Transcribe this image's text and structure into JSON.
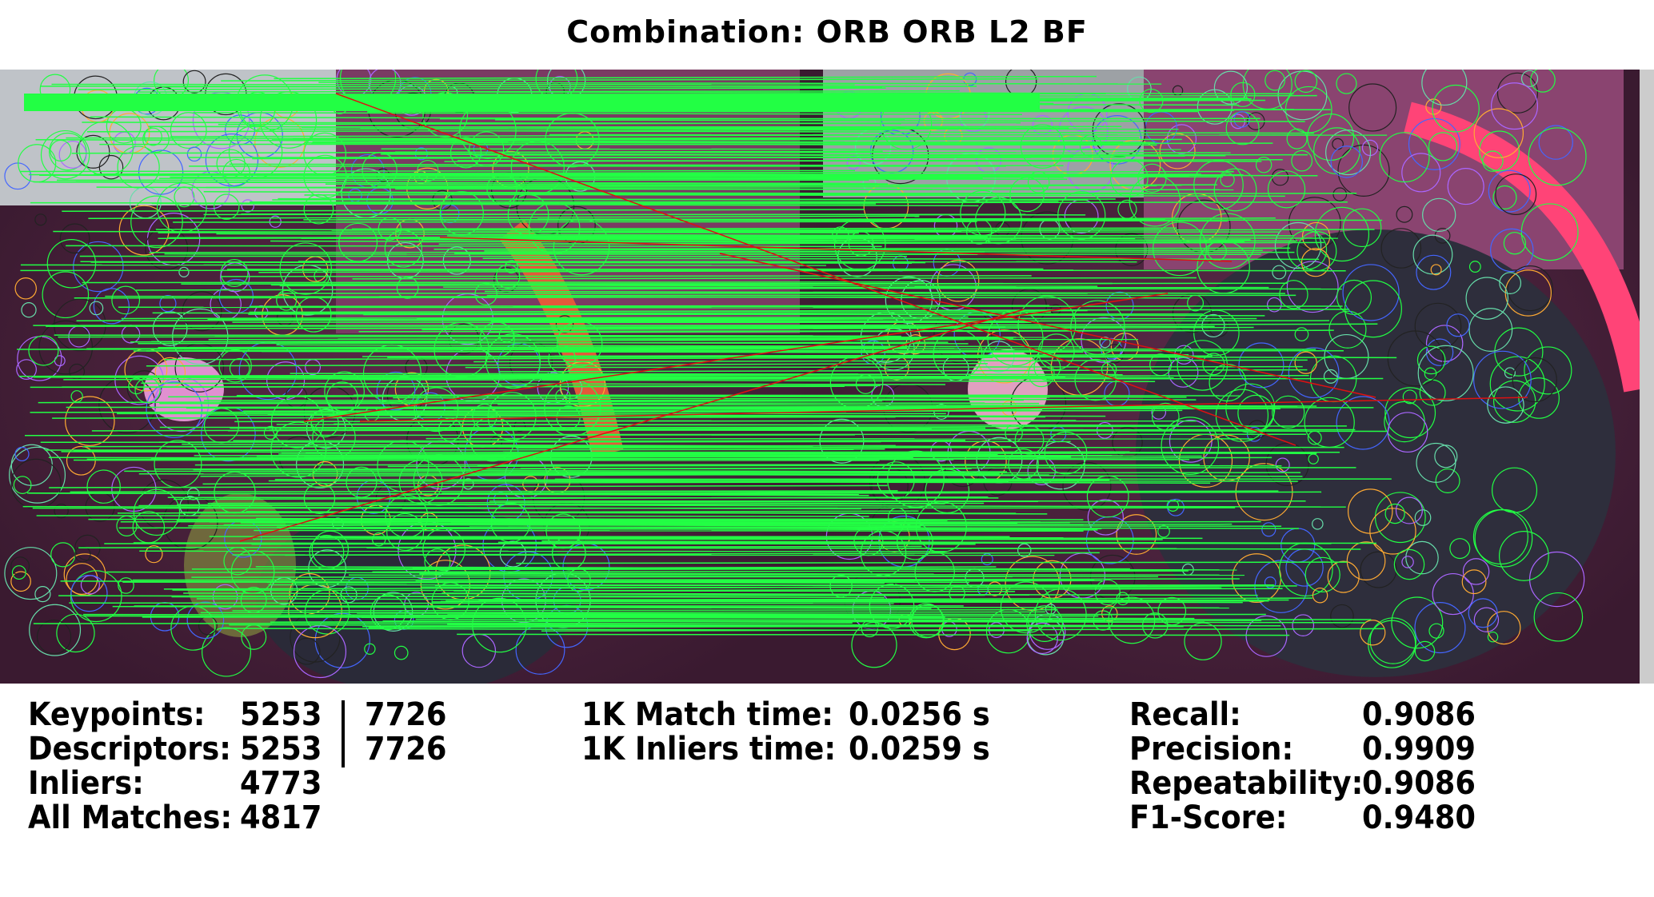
{
  "title": "Combination: ORB ORB L2 BF",
  "colors": {
    "match_line": "#22ff44",
    "outlier_line": "#dd1111",
    "background": "#ffffff",
    "text": "#000000"
  },
  "stats_left": [
    {
      "label": "Keypoints:",
      "value": "5253",
      "value2": "7726"
    },
    {
      "label": "Descriptors:",
      "value": "5253",
      "value2": "7726"
    },
    {
      "label": "Inliers:",
      "value": "4773"
    },
    {
      "label": "All Matches:",
      "value": "4817"
    }
  ],
  "stats_middle": [
    {
      "label": "1K Match time:",
      "value": "0.0256 s"
    },
    {
      "label": "1K Inliers time:",
      "value": "0.0259 s"
    }
  ],
  "stats_right": [
    {
      "label": "Recall:",
      "value": "0.9086"
    },
    {
      "label": "Precision:",
      "value": "0.9909"
    },
    {
      "label": "Repeatability:",
      "value": "0.9086"
    },
    {
      "label": "F1-Score:",
      "value": "0.9480"
    }
  ]
}
